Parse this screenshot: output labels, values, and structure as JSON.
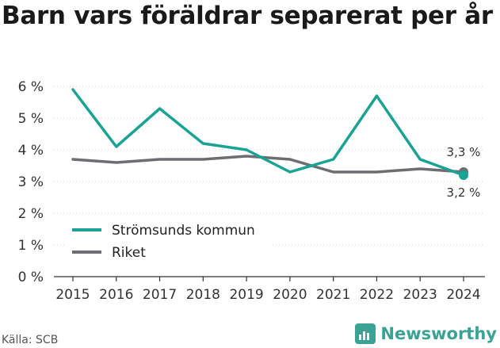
{
  "title": "Barn vars föräldrar separerat per år",
  "source": "Källa: SCB",
  "brand": {
    "name": "Newsworthy",
    "icon": "newsworthy-logo-icon",
    "color": "#3aa394"
  },
  "chart_data": {
    "type": "line",
    "title": "Barn vars föräldrar separerat per år",
    "xlabel": "",
    "ylabel": "",
    "x": [
      "2015",
      "2016",
      "2017",
      "2018",
      "2019",
      "2020",
      "2021",
      "2022",
      "2023",
      "2024"
    ],
    "yticks": [
      "0 %",
      "1 %",
      "2 %",
      "3 %",
      "4 %",
      "5 %",
      "6 %"
    ],
    "ylim": [
      0,
      6
    ],
    "grid": "horizontal dotted",
    "legend": "bottom-left",
    "series": [
      {
        "name": "Strömsunds kommun",
        "color": "#1aa394",
        "values": [
          5.9,
          4.1,
          5.3,
          4.2,
          4.0,
          3.3,
          3.7,
          5.7,
          3.7,
          3.2
        ]
      },
      {
        "name": "Riket",
        "color": "#6d6d72",
        "values": [
          3.7,
          3.6,
          3.7,
          3.7,
          3.8,
          3.7,
          3.3,
          3.3,
          3.4,
          3.3
        ]
      }
    ],
    "end_labels": [
      "3,3 %",
      "3,2 %"
    ]
  }
}
